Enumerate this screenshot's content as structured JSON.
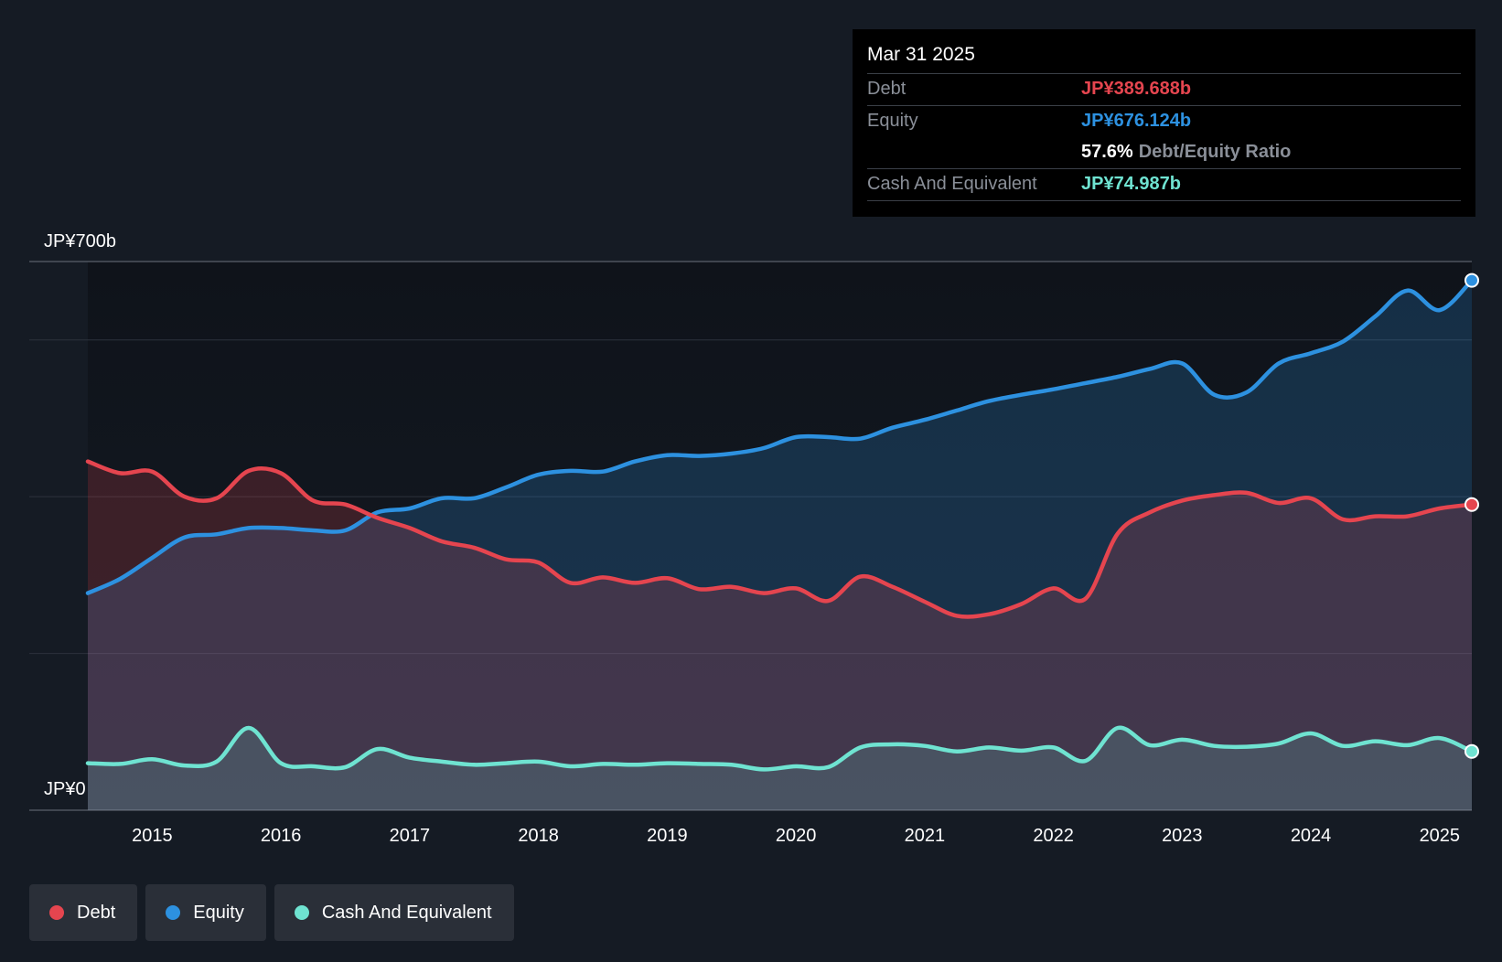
{
  "chart_data": {
    "type": "area",
    "title": "",
    "y_top_label": "JP¥700b",
    "y_bottom_label": "JP¥0",
    "ylim": [
      0,
      700
    ],
    "xlim": [
      2014.5,
      2025.25
    ],
    "x_ticks": [
      2015,
      2016,
      2017,
      2018,
      2019,
      2020,
      2021,
      2022,
      2023,
      2024,
      2025
    ],
    "x_tick_labels": [
      "2015",
      "2016",
      "2017",
      "2018",
      "2019",
      "2020",
      "2021",
      "2022",
      "2023",
      "2024",
      "2025"
    ],
    "series": [
      {
        "name": "Debt",
        "color": "#e5454f",
        "x": [
          2014.5,
          2014.75,
          2015.0,
          2015.25,
          2015.5,
          2015.75,
          2016.0,
          2016.25,
          2016.5,
          2016.75,
          2017.0,
          2017.25,
          2017.5,
          2017.75,
          2018.0,
          2018.25,
          2018.5,
          2018.75,
          2019.0,
          2019.25,
          2019.5,
          2019.75,
          2020.0,
          2020.25,
          2020.5,
          2020.75,
          2021.0,
          2021.25,
          2021.5,
          2021.75,
          2022.0,
          2022.25,
          2022.5,
          2022.75,
          2023.0,
          2023.25,
          2023.5,
          2023.75,
          2024.0,
          2024.25,
          2024.5,
          2024.75,
          2025.0,
          2025.25
        ],
        "values": [
          445,
          430,
          432,
          400,
          398,
          433,
          430,
          395,
          390,
          373,
          360,
          343,
          335,
          320,
          316,
          290,
          297,
          290,
          296,
          282,
          285,
          277,
          283,
          267,
          298,
          285,
          266,
          248,
          250,
          263,
          283,
          270,
          353,
          380,
          395,
          402,
          405,
          392,
          398,
          371,
          375,
          375,
          385,
          390
        ]
      },
      {
        "name": "Equity",
        "color": "#2d91e0",
        "x": [
          2014.5,
          2014.75,
          2015.0,
          2015.25,
          2015.5,
          2015.75,
          2016.0,
          2016.25,
          2016.5,
          2016.75,
          2017.0,
          2017.25,
          2017.5,
          2017.75,
          2018.0,
          2018.25,
          2018.5,
          2018.75,
          2019.0,
          2019.25,
          2019.5,
          2019.75,
          2020.0,
          2020.25,
          2020.5,
          2020.75,
          2021.0,
          2021.25,
          2021.5,
          2021.75,
          2022.0,
          2022.25,
          2022.5,
          2022.75,
          2023.0,
          2023.25,
          2023.5,
          2023.75,
          2024.0,
          2024.25,
          2024.5,
          2024.75,
          2025.0,
          2025.25
        ],
        "values": [
          277,
          295,
          322,
          348,
          352,
          360,
          360,
          357,
          357,
          380,
          385,
          398,
          398,
          412,
          428,
          433,
          432,
          445,
          453,
          452,
          455,
          462,
          476,
          476,
          474,
          488,
          498,
          510,
          522,
          530,
          537,
          545,
          553,
          563,
          570,
          530,
          533,
          570,
          583,
          598,
          630,
          663,
          638,
          676
        ]
      },
      {
        "name": "Cash And Equivalent",
        "color": "#6fe3d1",
        "x": [
          2014.5,
          2014.75,
          2015.0,
          2015.25,
          2015.5,
          2015.75,
          2016.0,
          2016.25,
          2016.5,
          2016.75,
          2017.0,
          2017.25,
          2017.5,
          2017.75,
          2018.0,
          2018.25,
          2018.5,
          2018.75,
          2019.0,
          2019.25,
          2019.5,
          2019.75,
          2020.0,
          2020.25,
          2020.5,
          2020.75,
          2021.0,
          2021.25,
          2021.5,
          2021.75,
          2022.0,
          2022.25,
          2022.5,
          2022.75,
          2023.0,
          2023.25,
          2023.5,
          2023.75,
          2024.0,
          2024.25,
          2024.5,
          2024.75,
          2025.0,
          2025.25
        ],
        "values": [
          60,
          59,
          65,
          57,
          62,
          105,
          60,
          56,
          55,
          78,
          67,
          62,
          58,
          60,
          62,
          56,
          59,
          58,
          60,
          59,
          58,
          52,
          56,
          55,
          80,
          84,
          82,
          75,
          80,
          76,
          80,
          63,
          105,
          83,
          90,
          82,
          81,
          85,
          98,
          82,
          88,
          83,
          92,
          75
        ]
      }
    ]
  },
  "tooltip": {
    "date": "Mar 31 2025",
    "debt_label": "Debt",
    "debt_value": "JP¥389.688b",
    "equity_label": "Equity",
    "equity_value": "JP¥676.124b",
    "ratio_value": "57.6%",
    "ratio_label": "Debt/Equity Ratio",
    "cash_label": "Cash And Equivalent",
    "cash_value": "JP¥74.987b"
  },
  "legend": {
    "items": [
      {
        "label": "Debt",
        "color": "#e5454f"
      },
      {
        "label": "Equity",
        "color": "#2d91e0"
      },
      {
        "label": "Cash And Equivalent",
        "color": "#6fe3d1"
      }
    ]
  }
}
